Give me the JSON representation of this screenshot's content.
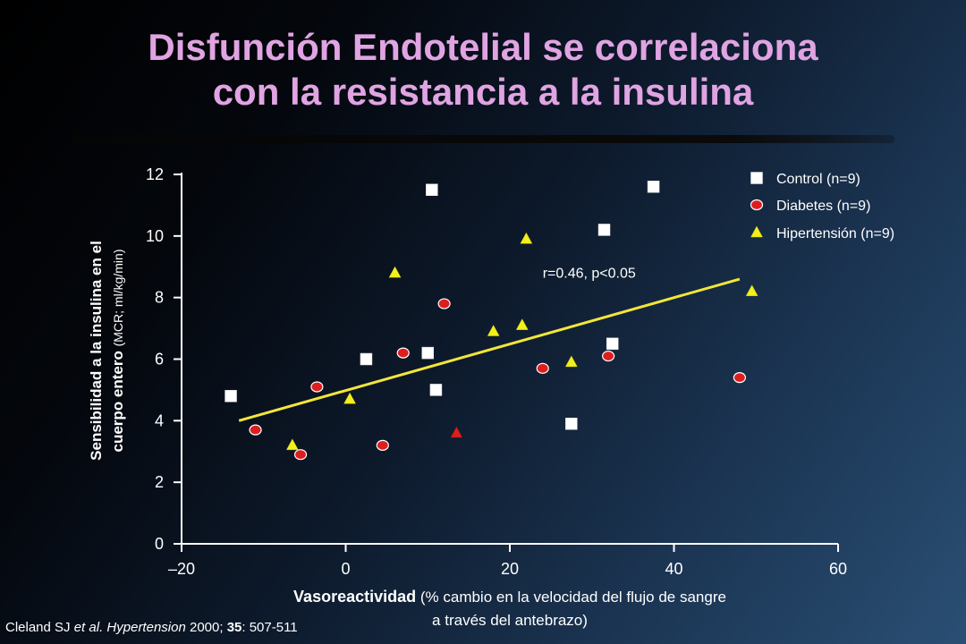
{
  "title": {
    "line1": "Disfunción Endotelial se correlaciona",
    "line2": "con la resistancia a la insulina"
  },
  "citation": {
    "authors": "Cleland SJ ",
    "etal": "et al.",
    "journal": "Hypertension",
    "year": " 2000; ",
    "volume": "35",
    "pages": ": 507-511"
  },
  "axes": {
    "ylabel_bold_line1": "Sensibilidad a la insulina en el",
    "ylabel_bold_line2": "cuerpo entero",
    "ylabel_unit": "(MCR; ml/kg/min)",
    "xlabel_bold": "Vasoreactividad",
    "xlabel_rest_line1": "(% cambio en la velocidad del flujo de sangre",
    "xlabel_rest_line2": "a través del antebrazo)"
  },
  "colors": {
    "control": "#ffffff",
    "diabetes": "#dd1e1e",
    "hipertension": "#f3ef1a",
    "regression": "#f3e63a",
    "axis": "#ffffff"
  },
  "chart_data": {
    "type": "scatter",
    "xlim": [
      -20,
      60
    ],
    "ylim": [
      0,
      12
    ],
    "xticks": [
      -20,
      0,
      20,
      40,
      60
    ],
    "xtick_labels": [
      "–20",
      "0",
      "20",
      "40",
      "60"
    ],
    "yticks": [
      0,
      2,
      4,
      6,
      8,
      10,
      12
    ],
    "ytick_labels": [
      "0",
      "2",
      "4",
      "6",
      "8",
      "10",
      "12"
    ],
    "grid": false,
    "legend_position": "top-right",
    "series": [
      {
        "name": "Control (n=9)",
        "marker": "square",
        "points": [
          [
            -14,
            4.8
          ],
          [
            2.5,
            6.0
          ],
          [
            10,
            6.2
          ],
          [
            10.5,
            11.5
          ],
          [
            11,
            5.0
          ],
          [
            27.5,
            3.9
          ],
          [
            31.5,
            10.2
          ],
          [
            32.5,
            6.5
          ],
          [
            37.5,
            11.6
          ]
        ]
      },
      {
        "name": "Diabetes (n=9)",
        "marker": "circle",
        "points": [
          [
            -11,
            3.7
          ],
          [
            -5.5,
            2.9
          ],
          [
            -3.5,
            5.1
          ],
          [
            4.5,
            3.2
          ],
          [
            7,
            6.2
          ],
          [
            12,
            7.8
          ],
          [
            24,
            5.7
          ],
          [
            32,
            6.1
          ],
          [
            48,
            5.4
          ]
        ]
      },
      {
        "name": "Hipertensión (n=9)",
        "marker": "triangle",
        "points": [
          [
            -6.5,
            3.2
          ],
          [
            0.5,
            4.7
          ],
          [
            6,
            8.8
          ],
          [
            18,
            6.9
          ],
          [
            21.5,
            7.1
          ],
          [
            22,
            9.9
          ],
          [
            27.5,
            5.9
          ],
          [
            49.5,
            8.2
          ],
          [
            13.5,
            3.6
          ]
        ]
      }
    ],
    "regression": {
      "from": [
        -13,
        4.0
      ],
      "to": [
        48,
        8.6
      ],
      "label": "r=0.46, p<0.05"
    }
  }
}
